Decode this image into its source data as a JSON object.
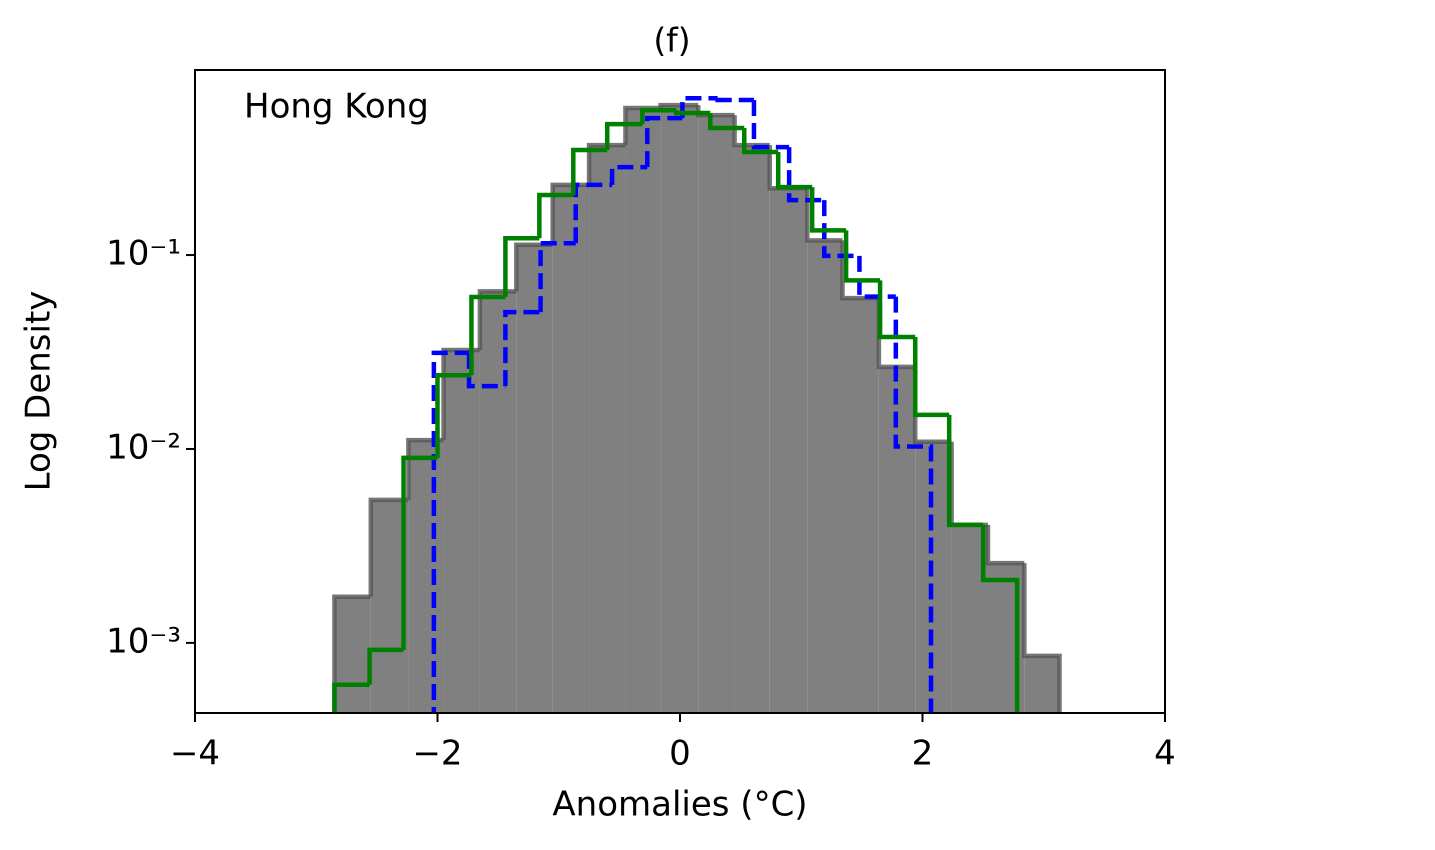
{
  "chart_data": {
    "type": "histogram",
    "title": "(f)",
    "annotation": "Hong Kong",
    "xlabel": "Anomalies (°C)",
    "ylabel": "Log Density",
    "xlim": [
      -4,
      4
    ],
    "xticks": [
      {
        "value": -4,
        "label": "−4"
      },
      {
        "value": -2,
        "label": "−2"
      },
      0,
      2,
      4
    ],
    "ylim": [
      0.000435,
      0.9
    ],
    "yticks": [
      {
        "value": 0.1,
        "label": "10⁻¹"
      },
      {
        "value": 0.01,
        "label": "10⁻²"
      },
      {
        "value": 0.001,
        "label": "10⁻³"
      }
    ],
    "log_y": true,
    "series": [
      {
        "color": "#808080",
        "edge_color": "#555555",
        "style": "filled",
        "bins": [
          -2.85,
          -2.55,
          -2.24,
          -1.95,
          -1.65,
          -1.35,
          -1.05,
          -0.75,
          -0.45,
          -0.16,
          0.15,
          0.45,
          0.74,
          1.05,
          1.34,
          1.64,
          1.94,
          2.24,
          2.54,
          2.84,
          3.13
        ],
        "values": [
          0.00173,
          0.00546,
          0.0111,
          0.0324,
          0.065,
          0.113,
          0.23,
          0.369,
          0.573,
          0.593,
          0.527,
          0.369,
          0.221,
          0.119,
          0.06,
          0.0265,
          0.0109,
          0.00406,
          0.00258,
          0.000857
        ]
      },
      {
        "color": "#0000ff",
        "style": "dashed",
        "bins": [
          -2.03,
          -1.74,
          -1.44,
          -1.15,
          -0.86,
          -0.56,
          -0.27,
          0.02,
          0.31,
          0.61,
          0.9,
          1.19,
          1.48,
          1.78,
          2.07
        ],
        "values": [
          0.0313,
          0.0211,
          0.0508,
          0.115,
          0.23,
          0.284,
          0.508,
          0.644,
          0.63,
          0.36,
          0.192,
          0.099,
          0.061,
          0.0103
        ]
      },
      {
        "color": "#008000",
        "style": "solid",
        "bins": [
          -2.85,
          -2.56,
          -2.28,
          -2.0,
          -1.72,
          -1.44,
          -1.16,
          -0.88,
          -0.6,
          -0.31,
          -0.03,
          0.25,
          0.53,
          0.81,
          1.09,
          1.37,
          1.65,
          1.94,
          2.22,
          2.5,
          2.78
        ],
        "values": [
          0.000608,
          0.00092,
          0.009,
          0.024,
          0.0608,
          0.122,
          0.204,
          0.348,
          0.473,
          0.558,
          0.54,
          0.452,
          0.34,
          0.224,
          0.134,
          0.074,
          0.0378,
          0.015,
          0.00406,
          0.00211
        ]
      }
    ]
  }
}
